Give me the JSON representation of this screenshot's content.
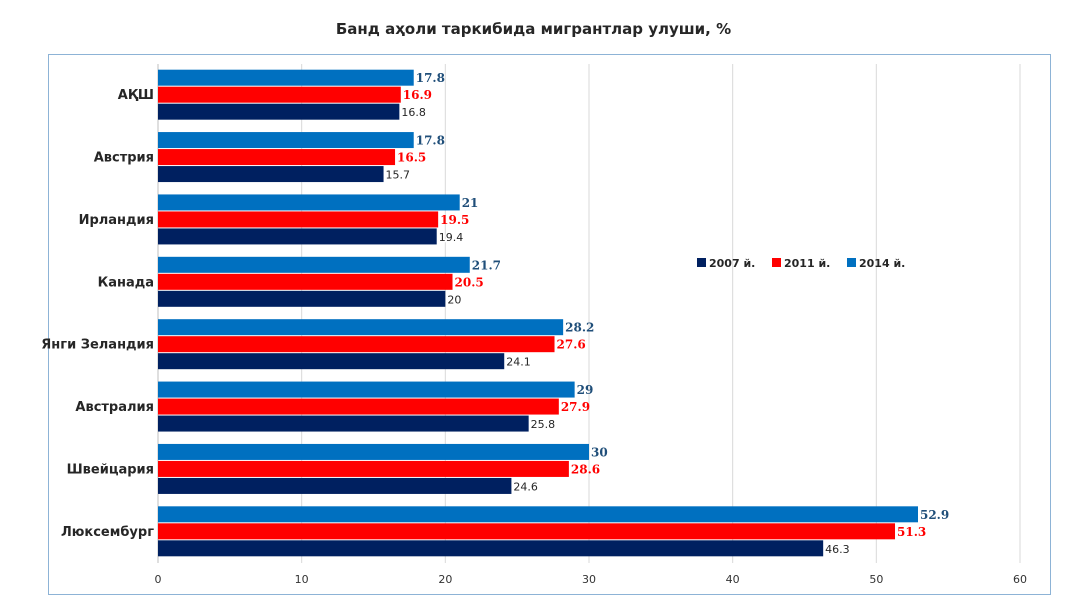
{
  "chart_data": {
    "type": "bar",
    "orientation": "horizontal",
    "title": "Банд аҳоли таркибида мигрантлар улуши, %",
    "xlim": [
      0,
      60
    ],
    "xticks": [
      0,
      10,
      20,
      30,
      40,
      50,
      60
    ],
    "grid": true,
    "legend_position": "right",
    "categories": [
      "АҚШ",
      "Австрия",
      "Ирландия",
      "Канада",
      "Янги Зеландия",
      "Австралия",
      "Швейцария",
      "Люксембург"
    ],
    "series": [
      {
        "name": "2007 й.",
        "color": "#002060",
        "label_color": "#262626",
        "values": [
          16.8,
          15.7,
          19.4,
          20,
          24.1,
          25.8,
          24.6,
          46.3
        ]
      },
      {
        "name": "2011 й.",
        "color": "#ff0000",
        "label_color": "#ff0000",
        "values": [
          16.9,
          16.5,
          19.5,
          20.5,
          27.6,
          27.9,
          28.6,
          51.3
        ]
      },
      {
        "name": "2014 й.",
        "color": "#0070c0",
        "label_color": "#1f4e79",
        "values": [
          17.8,
          17.8,
          21,
          21.7,
          28.2,
          29,
          30,
          52.9
        ]
      }
    ]
  }
}
